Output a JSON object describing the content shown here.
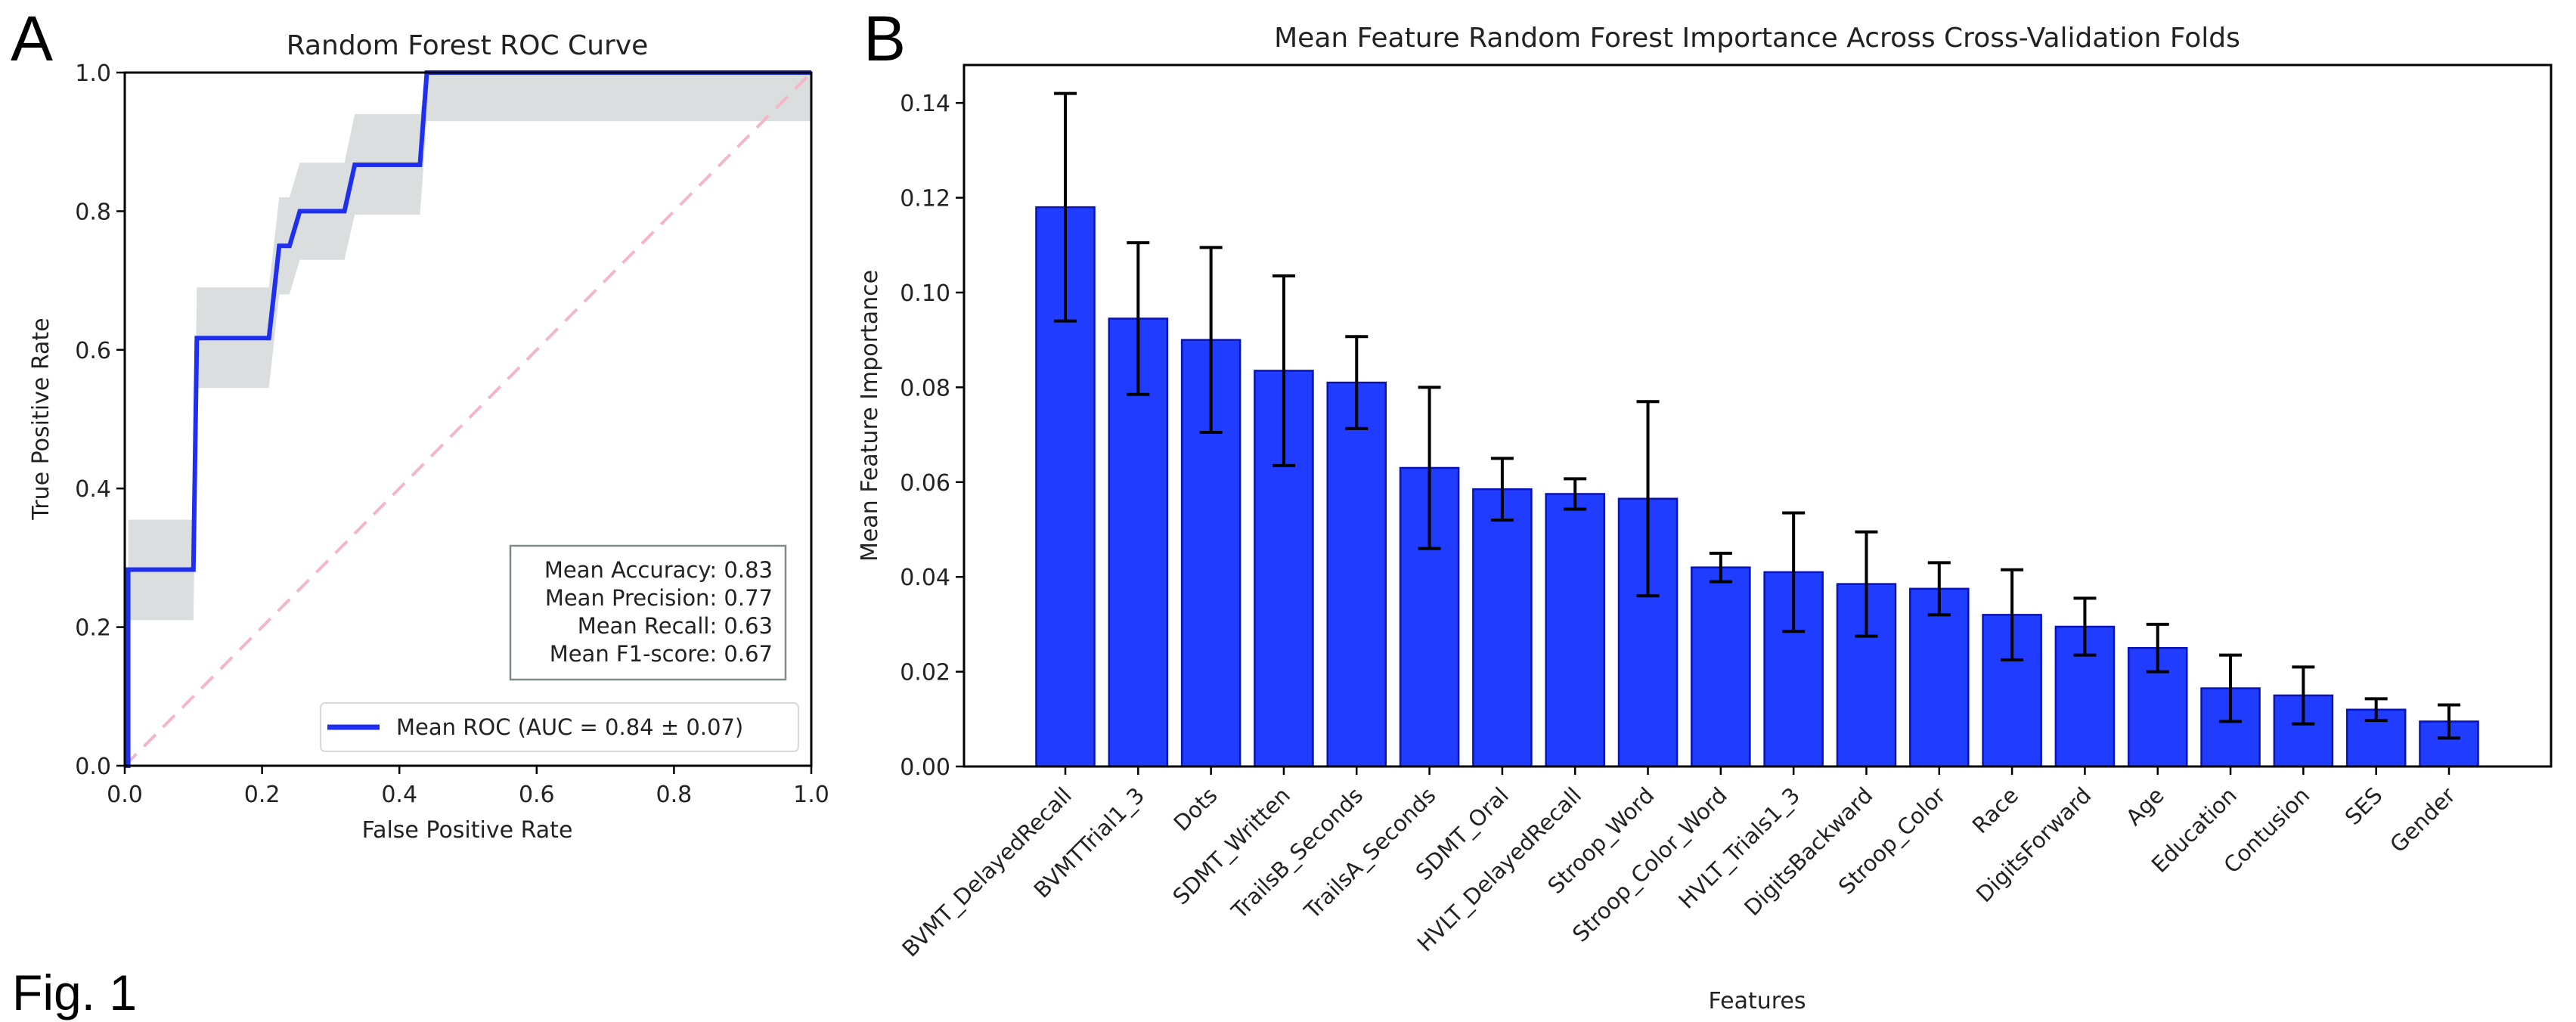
{
  "figure": {
    "fig_label": "Fig. 1",
    "panel_a_letter": "A",
    "panel_b_letter": "B"
  },
  "colors": {
    "roc_line": "#1f2ff0",
    "ci_band": "#c8cccc",
    "chance_line": "#f4b6c8",
    "bar_fill": "#1f3cff",
    "bar_edge": "#0a14b4",
    "error_bar": "#000000"
  },
  "metrics": {
    "accuracy": "Mean Accuracy: 0.83",
    "precision": "Mean Precision: 0.77",
    "recall": "Mean Recall: 0.63",
    "f1": "Mean F1-score: 0.67"
  },
  "chart_data": [
    {
      "type": "line",
      "title": "Random Forest ROC Curve",
      "xlabel": "False Positive Rate",
      "ylabel": "True Positive Rate",
      "xlim": [
        0.0,
        1.0
      ],
      "ylim": [
        0.0,
        1.0
      ],
      "xticks": [
        "0.0",
        "0.2",
        "0.4",
        "0.6",
        "0.8",
        "1.0"
      ],
      "yticks": [
        "0.0",
        "0.2",
        "0.4",
        "0.6",
        "0.8",
        "1.0"
      ],
      "grid": false,
      "legend": {
        "placement": "bottom-right",
        "entries": [
          "Mean ROC (AUC = 0.84 ± 0.07)"
        ]
      },
      "series": [
        {
          "name": "Mean ROC (AUC = 0.84 ± 0.07)",
          "x": [
            0.0,
            0.005,
            0.005,
            0.1,
            0.105,
            0.21,
            0.225,
            0.24,
            0.255,
            0.32,
            0.335,
            0.43,
            0.44,
            1.0
          ],
          "y": [
            0.0,
            0.0,
            0.283,
            0.283,
            0.617,
            0.617,
            0.75,
            0.75,
            0.8,
            0.8,
            0.867,
            0.867,
            1.0,
            1.0
          ]
        },
        {
          "name": "± 1 std. dev. band",
          "x": [
            0.005,
            0.1,
            0.105,
            0.21,
            0.225,
            0.24,
            0.255,
            0.32,
            0.335,
            0.43,
            0.44,
            1.0
          ],
          "lower": [
            0.21,
            0.21,
            0.545,
            0.545,
            0.68,
            0.68,
            0.73,
            0.73,
            0.795,
            0.795,
            0.93,
            0.93
          ],
          "upper": [
            0.355,
            0.355,
            0.69,
            0.69,
            0.82,
            0.82,
            0.87,
            0.87,
            0.94,
            0.94,
            1.0,
            1.0
          ]
        },
        {
          "name": "Chance",
          "x": [
            0.0,
            1.0
          ],
          "y": [
            0.0,
            1.0
          ],
          "style": "dashed"
        }
      ]
    },
    {
      "type": "bar",
      "title": "Mean Feature Random Forest Importance Across Cross-Validation Folds",
      "xlabel": "Features",
      "ylabel": "Mean Feature Importance",
      "ylim": [
        0.0,
        0.148
      ],
      "yticks": [
        "0.00",
        "0.02",
        "0.04",
        "0.06",
        "0.08",
        "0.10",
        "0.12",
        "0.14"
      ],
      "grid": false,
      "categories": [
        "BVMT_DelayedRecall",
        "BVMTTrial1_3",
        "Dots",
        "SDMT_Written",
        "TrailsB_Seconds",
        "TrailsA_Seconds",
        "SDMT_Oral",
        "HVLT_DelayedRecall",
        "Stroop_Word",
        "Stroop_Color_Word",
        "HVLT_Trials1_3",
        "DigitsBackward",
        "Stroop_Color",
        "Race",
        "DigitsForward",
        "Age",
        "Education",
        "Contusion",
        "SES",
        "Gender"
      ],
      "values": [
        0.118,
        0.0945,
        0.09,
        0.0835,
        0.081,
        0.063,
        0.0585,
        0.0575,
        0.0565,
        0.042,
        0.041,
        0.0385,
        0.0375,
        0.032,
        0.0295,
        0.025,
        0.0165,
        0.015,
        0.012,
        0.0095
      ],
      "error": [
        0.024,
        0.016,
        0.0195,
        0.02,
        0.0097,
        0.017,
        0.0065,
        0.0032,
        0.0205,
        0.003,
        0.0125,
        0.011,
        0.0055,
        0.0095,
        0.006,
        0.005,
        0.007,
        0.006,
        0.0023,
        0.0035
      ]
    }
  ]
}
